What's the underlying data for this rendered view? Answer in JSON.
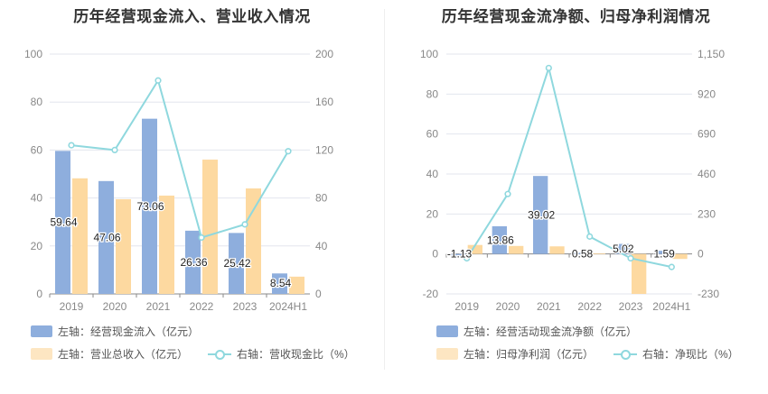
{
  "colors": {
    "bar1": "#8eaedd",
    "bar2": "#fdd9a0",
    "line": "#8fd8de",
    "grid": "#e3e6ee",
    "axis": "#888888"
  },
  "chart_data": [
    {
      "type": "bar",
      "title": "历年经营现金流入、营业收入情况",
      "categories": [
        "2019",
        "2020",
        "2021",
        "2022",
        "2023",
        "2024H1"
      ],
      "left_axis": {
        "ticks": [
          "0",
          "20",
          "40",
          "60",
          "80",
          "100"
        ],
        "ylim": [
          0,
          100
        ]
      },
      "right_axis": {
        "ticks": [
          "0",
          "40",
          "80",
          "120",
          "160",
          "200"
        ],
        "ylim": [
          0,
          200
        ]
      },
      "series": [
        {
          "name": "左轴：经营现金流入（亿元）",
          "type": "bar",
          "axis": "left",
          "values": [
            59.64,
            47.06,
            73.06,
            26.36,
            25.42,
            8.54
          ],
          "labels": [
            "59.64",
            "47.06",
            "73.06",
            "26.36",
            "25.42",
            "8.54"
          ]
        },
        {
          "name": "左轴：营业总收入（亿元）",
          "type": "bar",
          "axis": "left",
          "values": [
            48.2,
            39.5,
            41.0,
            56.0,
            44.0,
            7.2
          ]
        },
        {
          "name": "右轴：营收现金比（%）",
          "type": "line",
          "axis": "right",
          "values": [
            124,
            120,
            178,
            47,
            58,
            119
          ]
        }
      ],
      "legend_position": "bottom-left"
    },
    {
      "type": "bar",
      "title": "历年经营现金流净额、归母净利润情况",
      "categories": [
        "2019",
        "2020",
        "2021",
        "2022",
        "2023",
        "2024H1"
      ],
      "left_axis": {
        "ticks": [
          "-20",
          "0",
          "20",
          "40",
          "60",
          "80",
          "100"
        ],
        "ylim": [
          -20,
          100
        ]
      },
      "right_axis": {
        "ticks": [
          "-230",
          "0",
          "230",
          "460",
          "690",
          "920",
          "1,150"
        ],
        "ylim": [
          -230,
          1150
        ]
      },
      "series": [
        {
          "name": "左轴：经营活动现金流净额（亿元）",
          "type": "bar",
          "axis": "left",
          "values": [
            -1.13,
            13.86,
            39.02,
            0.58,
            5.02,
            1.59
          ],
          "labels": [
            "-1.13",
            "13.86",
            "39.02",
            "0.58",
            "5.02",
            "1.59"
          ]
        },
        {
          "name": "左轴：归母净利润（亿元）",
          "type": "bar",
          "axis": "left",
          "values": [
            4.5,
            4.0,
            3.8,
            0.3,
            -20.0,
            -2.5
          ]
        },
        {
          "name": "右轴：净现比（%）",
          "type": "line",
          "axis": "right",
          "values": [
            -25,
            345,
            1070,
            100,
            -25,
            -75
          ]
        }
      ],
      "legend_position": "bottom-left"
    }
  ]
}
